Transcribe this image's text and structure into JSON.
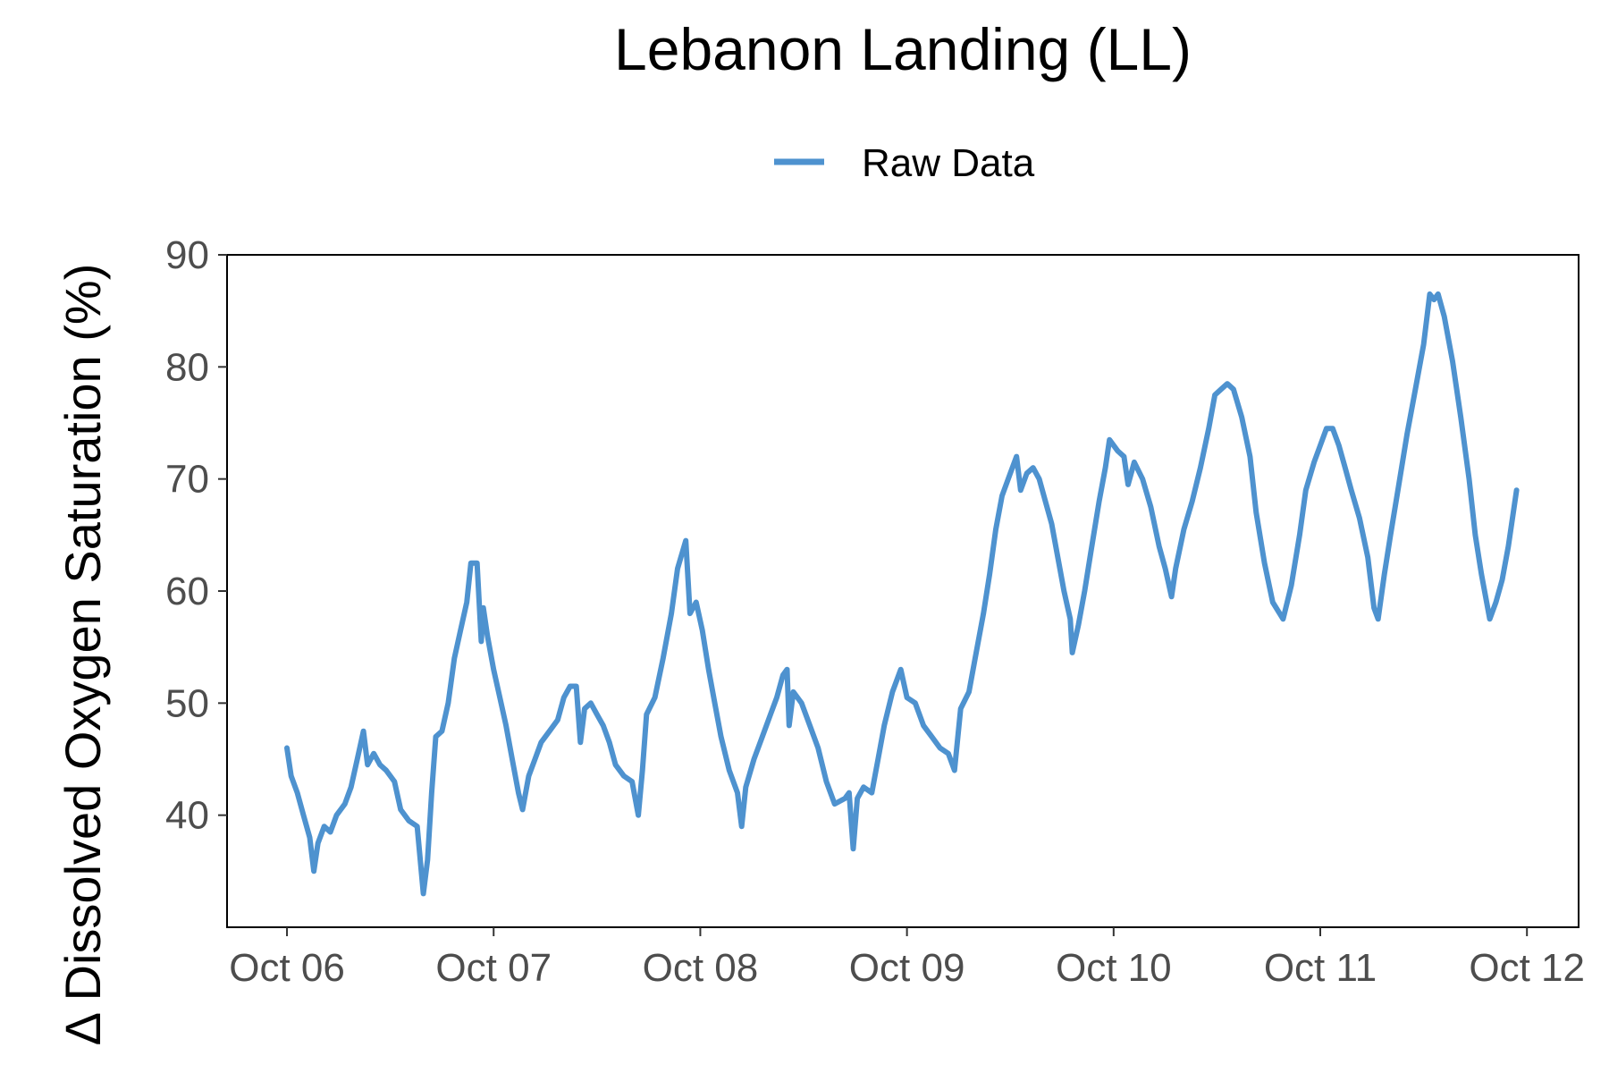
{
  "chart_data": {
    "type": "line",
    "title": "Lebanon Landing (LL)",
    "xlabel": "",
    "ylabel": "Δ Dissolved Oxygen Saturation (%)",
    "legend": {
      "placement": "top-center",
      "entries": [
        "Raw Data"
      ]
    },
    "grid": false,
    "x_axis": {
      "type": "date",
      "range": [
        "Oct 06",
        "Oct 12"
      ],
      "ticks": [
        "Oct 06",
        "Oct 07",
        "Oct 08",
        "Oct 09",
        "Oct 10",
        "Oct 11",
        "Oct 12"
      ]
    },
    "y_axis": {
      "range": [
        30,
        90
      ],
      "ticks": [
        40,
        50,
        60,
        70,
        80,
        90
      ]
    },
    "series": [
      {
        "name": "Raw Data",
        "color": "#4e92cf",
        "x_unit": "days from Oct 06 00:00",
        "points": [
          [
            0.0,
            46.0
          ],
          [
            0.02,
            43.5
          ],
          [
            0.05,
            42.0
          ],
          [
            0.08,
            40.0
          ],
          [
            0.11,
            38.0
          ],
          [
            0.13,
            35.0
          ],
          [
            0.15,
            37.5
          ],
          [
            0.18,
            39.0
          ],
          [
            0.21,
            38.5
          ],
          [
            0.24,
            40.0
          ],
          [
            0.28,
            41.0
          ],
          [
            0.31,
            42.5
          ],
          [
            0.34,
            45.0
          ],
          [
            0.37,
            47.5
          ],
          [
            0.39,
            44.5
          ],
          [
            0.42,
            45.5
          ],
          [
            0.45,
            44.5
          ],
          [
            0.48,
            44.0
          ],
          [
            0.52,
            43.0
          ],
          [
            0.55,
            40.5
          ],
          [
            0.59,
            39.5
          ],
          [
            0.63,
            39.0
          ],
          [
            0.66,
            33.0
          ],
          [
            0.68,
            36.0
          ],
          [
            0.7,
            42.0
          ],
          [
            0.72,
            47.0
          ],
          [
            0.75,
            47.5
          ],
          [
            0.78,
            50.0
          ],
          [
            0.81,
            54.0
          ],
          [
            0.84,
            56.5
          ],
          [
            0.87,
            59.0
          ],
          [
            0.89,
            62.5
          ],
          [
            0.92,
            62.5
          ],
          [
            0.94,
            55.5
          ],
          [
            0.95,
            58.5
          ],
          [
            0.97,
            56.0
          ],
          [
            1.0,
            53.0
          ],
          [
            1.03,
            50.5
          ],
          [
            1.06,
            48.0
          ],
          [
            1.09,
            45.0
          ],
          [
            1.12,
            42.0
          ],
          [
            1.14,
            40.5
          ],
          [
            1.17,
            43.5
          ],
          [
            1.2,
            45.0
          ],
          [
            1.23,
            46.5
          ],
          [
            1.27,
            47.5
          ],
          [
            1.31,
            48.5
          ],
          [
            1.34,
            50.5
          ],
          [
            1.37,
            51.5
          ],
          [
            1.4,
            51.5
          ],
          [
            1.42,
            46.5
          ],
          [
            1.44,
            49.5
          ],
          [
            1.47,
            50.0
          ],
          [
            1.5,
            49.0
          ],
          [
            1.53,
            48.0
          ],
          [
            1.56,
            46.5
          ],
          [
            1.59,
            44.5
          ],
          [
            1.63,
            43.5
          ],
          [
            1.67,
            43.0
          ],
          [
            1.7,
            40.0
          ],
          [
            1.72,
            44.0
          ],
          [
            1.74,
            49.0
          ],
          [
            1.78,
            50.5
          ],
          [
            1.82,
            54.0
          ],
          [
            1.86,
            58.0
          ],
          [
            1.89,
            62.0
          ],
          [
            1.93,
            64.5
          ],
          [
            1.95,
            58.0
          ],
          [
            1.98,
            59.0
          ],
          [
            2.01,
            56.5
          ],
          [
            2.04,
            53.0
          ],
          [
            2.07,
            50.0
          ],
          [
            2.1,
            47.0
          ],
          [
            2.14,
            44.0
          ],
          [
            2.18,
            42.0
          ],
          [
            2.2,
            39.0
          ],
          [
            2.22,
            42.5
          ],
          [
            2.26,
            45.0
          ],
          [
            2.3,
            47.0
          ],
          [
            2.34,
            49.0
          ],
          [
            2.37,
            50.5
          ],
          [
            2.4,
            52.5
          ],
          [
            2.42,
            53.0
          ],
          [
            2.43,
            48.0
          ],
          [
            2.45,
            51.0
          ],
          [
            2.49,
            50.0
          ],
          [
            2.53,
            48.0
          ],
          [
            2.57,
            46.0
          ],
          [
            2.61,
            43.0
          ],
          [
            2.65,
            41.0
          ],
          [
            2.7,
            41.5
          ],
          [
            2.72,
            42.0
          ],
          [
            2.74,
            37.0
          ],
          [
            2.76,
            41.5
          ],
          [
            2.79,
            42.5
          ],
          [
            2.83,
            42.0
          ],
          [
            2.86,
            45.0
          ],
          [
            2.89,
            48.0
          ],
          [
            2.93,
            51.0
          ],
          [
            2.97,
            53.0
          ],
          [
            3.0,
            50.5
          ],
          [
            3.04,
            50.0
          ],
          [
            3.08,
            48.0
          ],
          [
            3.12,
            47.0
          ],
          [
            3.16,
            46.0
          ],
          [
            3.2,
            45.5
          ],
          [
            3.23,
            44.0
          ],
          [
            3.26,
            49.5
          ],
          [
            3.3,
            51.0
          ],
          [
            3.33,
            54.0
          ],
          [
            3.37,
            58.0
          ],
          [
            3.4,
            61.5
          ],
          [
            3.43,
            65.5
          ],
          [
            3.46,
            68.5
          ],
          [
            3.5,
            70.5
          ],
          [
            3.53,
            72.0
          ],
          [
            3.55,
            69.0
          ],
          [
            3.58,
            70.5
          ],
          [
            3.61,
            71.0
          ],
          [
            3.64,
            70.0
          ],
          [
            3.67,
            68.0
          ],
          [
            3.7,
            66.0
          ],
          [
            3.73,
            63.0
          ],
          [
            3.76,
            60.0
          ],
          [
            3.79,
            57.5
          ],
          [
            3.8,
            54.5
          ],
          [
            3.83,
            57.0
          ],
          [
            3.86,
            60.0
          ],
          [
            3.89,
            63.5
          ],
          [
            3.93,
            68.0
          ],
          [
            3.96,
            71.0
          ],
          [
            3.98,
            73.5
          ],
          [
            4.02,
            72.5
          ],
          [
            4.05,
            72.0
          ],
          [
            4.07,
            69.5
          ],
          [
            4.1,
            71.5
          ],
          [
            4.14,
            70.0
          ],
          [
            4.18,
            67.5
          ],
          [
            4.22,
            64.0
          ],
          [
            4.25,
            62.0
          ],
          [
            4.28,
            59.5
          ],
          [
            4.3,
            62.0
          ],
          [
            4.34,
            65.5
          ],
          [
            4.38,
            68.0
          ],
          [
            4.42,
            71.0
          ],
          [
            4.46,
            74.5
          ],
          [
            4.49,
            77.5
          ],
          [
            4.52,
            78.0
          ],
          [
            4.55,
            78.5
          ],
          [
            4.58,
            78.0
          ],
          [
            4.62,
            75.5
          ],
          [
            4.66,
            72.0
          ],
          [
            4.69,
            67.0
          ],
          [
            4.73,
            62.5
          ],
          [
            4.77,
            59.0
          ],
          [
            4.82,
            57.5
          ],
          [
            4.86,
            60.5
          ],
          [
            4.9,
            65.0
          ],
          [
            4.93,
            69.0
          ],
          [
            4.97,
            71.5
          ],
          [
            5.0,
            73.0
          ],
          [
            5.03,
            74.5
          ],
          [
            5.06,
            74.5
          ],
          [
            5.09,
            73.0
          ],
          [
            5.12,
            71.0
          ],
          [
            5.15,
            69.0
          ],
          [
            5.19,
            66.5
          ],
          [
            5.23,
            63.0
          ],
          [
            5.26,
            58.5
          ],
          [
            5.28,
            57.5
          ],
          [
            5.31,
            61.5
          ],
          [
            5.34,
            65.0
          ],
          [
            5.38,
            69.5
          ],
          [
            5.42,
            74.0
          ],
          [
            5.46,
            78.0
          ],
          [
            5.5,
            82.0
          ],
          [
            5.53,
            86.5
          ],
          [
            5.55,
            86.0
          ],
          [
            5.57,
            86.5
          ],
          [
            5.6,
            84.5
          ],
          [
            5.64,
            80.5
          ],
          [
            5.68,
            75.5
          ],
          [
            5.72,
            70.0
          ],
          [
            5.75,
            65.0
          ],
          [
            5.78,
            61.5
          ],
          [
            5.82,
            57.5
          ],
          [
            5.85,
            59.0
          ],
          [
            5.88,
            61.0
          ],
          [
            5.91,
            64.0
          ],
          [
            5.95,
            69.0
          ]
        ]
      }
    ]
  }
}
